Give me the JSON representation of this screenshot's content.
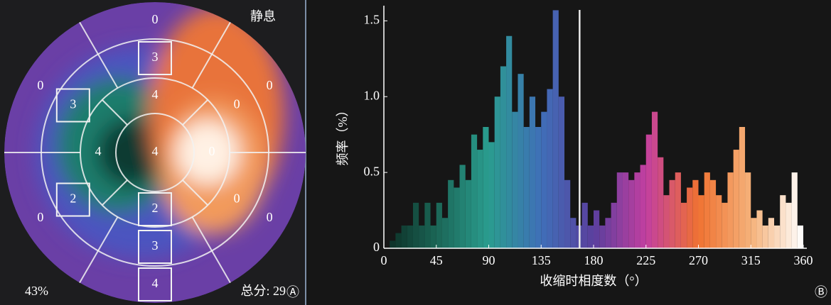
{
  "polar_map": {
    "label": "静息",
    "rings": [
      [
        0,
        0,
        0,
        4,
        0,
        0
      ],
      [
        3,
        0,
        0,
        3,
        2,
        3
      ],
      [
        4,
        0,
        2,
        4
      ],
      [
        4
      ]
    ],
    "percent_text": "43%",
    "total_text": "总分: 29",
    "panel_mark": "Ⓐ"
  },
  "chart_data": {
    "type": "histogram",
    "ylabel": "频率（%）",
    "xlabel": "收缩时相度数（°）",
    "panel_mark": "Ⓑ",
    "bins": [
      0,
      5,
      10,
      15,
      20,
      25,
      30,
      35,
      40,
      45,
      50,
      55,
      60,
      65,
      70,
      75,
      80,
      85,
      90,
      95,
      100,
      105,
      110,
      115,
      120,
      125,
      130,
      135,
      140,
      145,
      150,
      155,
      160,
      165,
      170,
      175,
      180,
      185,
      190,
      195,
      200,
      205,
      210,
      215,
      220,
      225,
      230,
      235,
      240,
      245,
      250,
      255,
      260,
      265,
      270,
      275,
      280,
      285,
      290,
      295,
      300,
      305,
      310,
      315,
      320,
      325,
      330,
      335,
      340,
      345,
      350,
      355,
      360
    ],
    "values": [
      0,
      0.05,
      0.1,
      0.15,
      0.15,
      0.3,
      0.15,
      0.3,
      0.15,
      0.3,
      0.2,
      0.45,
      0.4,
      0.55,
      0.45,
      0.75,
      0.65,
      0.8,
      0.7,
      1.0,
      1.2,
      1.4,
      0.9,
      1.15,
      0.8,
      1.0,
      0.8,
      0.9,
      1.05,
      1.57,
      1.0,
      0.45,
      0.2,
      0.15,
      0.3,
      0.15,
      0.25,
      0.15,
      0.2,
      0.3,
      0.5,
      0.5,
      0.45,
      0.5,
      0.55,
      0.75,
      0.9,
      0.6,
      0.35,
      0.45,
      0.5,
      0.3,
      0.4,
      0.45,
      0.35,
      0.5,
      0.45,
      0.35,
      0.3,
      0.5,
      0.65,
      0.8,
      0.5,
      0.2,
      0.25,
      0.15,
      0.2,
      0.15,
      0.35,
      0.3,
      0.5,
      0.15
    ],
    "colormap": [
      "#0b2a22",
      "#1b6656",
      "#2a9d8f",
      "#3f6fb8",
      "#5a3f9e",
      "#c23fa0",
      "#f07232",
      "#f5b27a",
      "#ffffff"
    ],
    "reference_x": 168,
    "xlim": [
      0,
      360
    ],
    "ylim": [
      0,
      1.6
    ],
    "xticks": [
      0,
      45,
      90,
      135,
      180,
      225,
      270,
      315,
      360
    ],
    "yticks": [
      0,
      0.5,
      {
        "value": 1,
        "label": "1.0"
      },
      1.5
    ]
  }
}
